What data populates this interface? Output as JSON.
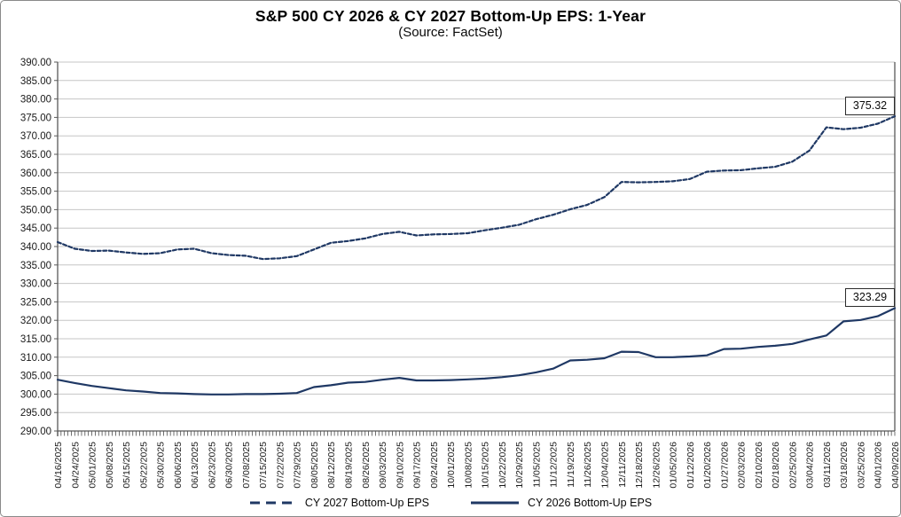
{
  "colors": {
    "line": "#1F3864",
    "grid": "#C6C6C6",
    "axis": "#595959",
    "tick": "#333333",
    "text": "#1a1a1a",
    "background": "#FFFFFF"
  },
  "chart_data": {
    "type": "line",
    "title": "S&P 500 CY 2026 & CY 2027 Bottom-Up EPS: 1-Year",
    "subtitle": "(Source: FactSet)",
    "xlabel": "",
    "ylabel": "",
    "ylim": [
      290,
      390
    ],
    "ytick_step": 5,
    "grid": true,
    "legend_position": "bottom",
    "categories": [
      "04/16/2025",
      "04/24/2025",
      "05/01/2025",
      "05/08/2025",
      "05/15/2025",
      "05/22/2025",
      "05/30/2025",
      "06/06/2025",
      "06/13/2025",
      "06/23/2025",
      "06/30/2025",
      "07/08/2025",
      "07/15/2025",
      "07/22/2025",
      "07/29/2025",
      "08/05/2025",
      "08/12/2025",
      "08/19/2025",
      "08/26/2025",
      "09/03/2025",
      "09/10/2025",
      "09/17/2025",
      "09/24/2025",
      "10/01/2025",
      "10/08/2025",
      "10/15/2025",
      "10/22/2025",
      "10/29/2025",
      "11/05/2025",
      "11/12/2025",
      "11/19/2025",
      "11/26/2025",
      "12/04/2025",
      "12/11/2025",
      "12/18/2025",
      "12/26/2025",
      "01/05/2026",
      "01/12/2026",
      "01/20/2026",
      "01/27/2026",
      "02/03/2026",
      "02/10/2026",
      "02/18/2026",
      "02/25/2026",
      "03/04/2026",
      "03/11/2026",
      "03/18/2026",
      "03/25/2026",
      "04/01/2026",
      "04/09/2026"
    ],
    "series": [
      {
        "name": "CY 2027 Bottom-Up EPS",
        "style": "dashed",
        "end_label": "375.32",
        "values": [
          341.2,
          339.4,
          338.8,
          338.9,
          338.4,
          338.0,
          338.2,
          339.2,
          339.4,
          338.2,
          337.7,
          337.5,
          336.6,
          336.8,
          337.4,
          339.2,
          341.0,
          341.5,
          342.2,
          343.4,
          344.0,
          343.0,
          343.3,
          343.4,
          343.6,
          344.4,
          345.1,
          345.9,
          347.4,
          348.6,
          350.1,
          351.3,
          353.4,
          357.5,
          357.4,
          357.5,
          357.7,
          358.3,
          360.3,
          360.6,
          360.7,
          361.2,
          361.6,
          363.0,
          366.0,
          372.3,
          371.8,
          372.2,
          373.3,
          375.32
        ]
      },
      {
        "name": "CY 2026 Bottom-Up EPS",
        "style": "solid",
        "end_label": "323.29",
        "values": [
          303.9,
          303.0,
          302.2,
          301.6,
          301.0,
          300.7,
          300.3,
          300.2,
          300.0,
          299.9,
          299.9,
          300.0,
          300.0,
          300.1,
          300.3,
          301.9,
          302.4,
          303.1,
          303.3,
          303.9,
          304.4,
          303.7,
          303.7,
          303.8,
          304.0,
          304.2,
          304.6,
          305.1,
          305.9,
          306.9,
          309.1,
          309.3,
          309.7,
          311.5,
          311.4,
          310.0,
          310.0,
          310.2,
          310.5,
          312.2,
          312.3,
          312.8,
          313.1,
          313.6,
          314.8,
          315.9,
          319.7,
          320.1,
          321.1,
          323.29
        ]
      }
    ]
  }
}
